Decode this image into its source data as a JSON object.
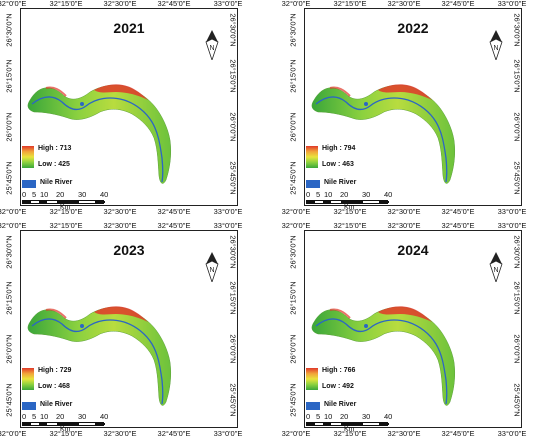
{
  "axes": {
    "lon_labels": [
      "32°0'0\"E",
      "32°15'0\"E",
      "32°30'0\"E",
      "32°45'0\"E",
      "33°0'0\"E"
    ],
    "lat_labels": [
      "26°30'0\"N",
      "26°15'0\"N",
      "26°0'0\"N",
      "25°45'0\"N"
    ]
  },
  "panels": [
    {
      "year": "2021",
      "high": "High : 713",
      "low": "Low : 425"
    },
    {
      "year": "2022",
      "high": "High : 794",
      "low": "Low : 463"
    },
    {
      "year": "2023",
      "high": "High : 729",
      "low": "Low : 468"
    },
    {
      "year": "2024",
      "high": "High : 766",
      "low": "Low : 492"
    }
  ],
  "legend": {
    "river_label": "Nile River",
    "ramp_colors": [
      "#e0382a",
      "#f1a33a",
      "#e9e43c",
      "#8bd13f",
      "#3aa63a"
    ],
    "river_color": "#2b66c4"
  },
  "scale": {
    "numbers": [
      "0",
      "5",
      "10",
      "20",
      "30",
      "40"
    ],
    "unit": "Km"
  },
  "north_arrow": {
    "letter": "N",
    "icon": "north-arrow-icon"
  }
}
